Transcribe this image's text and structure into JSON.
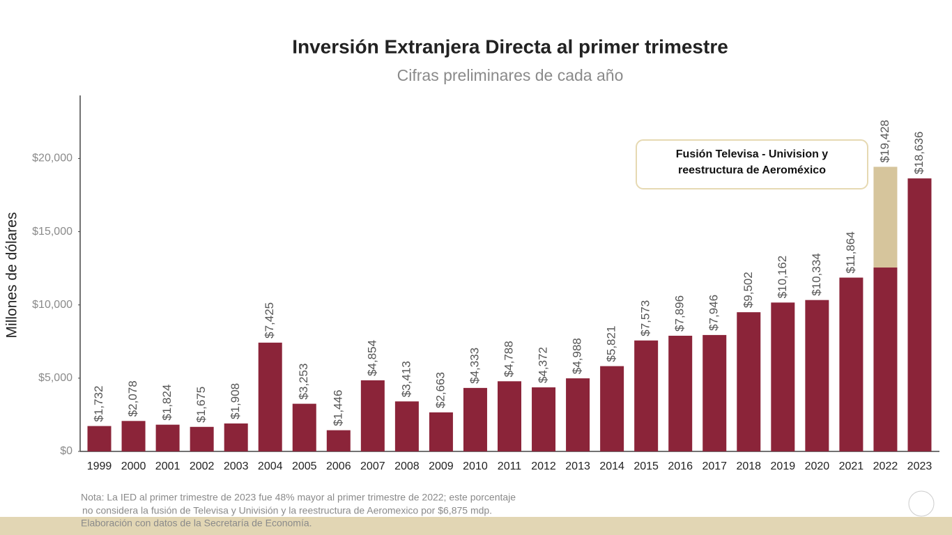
{
  "chart_data": {
    "type": "bar",
    "title": "Inversión Extranjera Directa al primer trimestre",
    "subtitle": "Cifras preliminares de cada año",
    "y_label": "Millones de dólares",
    "annotation": [
      "Fusión Televisa - Univision y",
      "reestructura de Aeroméxico"
    ],
    "notes": [
      "Nota: La IED al primer trimestre de 2023 fue 48% mayor al primer trimestre de 2022; este porcentaje",
      "no considera la fusión de Televisa y Univisión y la reestructura de Aeromexico por $6,875 mdp.",
      "Elaboración con datos de la Secretaría de Economía."
    ],
    "categories": [
      "1999",
      "2000",
      "2001",
      "2002",
      "2003",
      "2004",
      "2005",
      "2006",
      "2007",
      "2008",
      "2009",
      "2010",
      "2011",
      "2012",
      "2013",
      "2014",
      "2015",
      "2016",
      "2017",
      "2018",
      "2019",
      "2020",
      "2021",
      "2022",
      "2023"
    ],
    "series": [
      {
        "color": "#8b2439",
        "values": [
          1732,
          2078,
          1824,
          1675,
          1908,
          7425,
          3253,
          1446,
          4854,
          3413,
          2663,
          4333,
          4788,
          4372,
          4988,
          5821,
          7573,
          7896,
          7946,
          9502,
          10162,
          10334,
          11864,
          12553,
          18636
        ]
      },
      {
        "name": "Fusión Televisa - Univision y reestructura de Aeroméxico",
        "color": "#d6c59c",
        "values": [
          null,
          null,
          null,
          null,
          null,
          null,
          null,
          null,
          null,
          null,
          null,
          null,
          null,
          null,
          null,
          null,
          null,
          null,
          null,
          null,
          null,
          null,
          null,
          6875,
          null
        ]
      }
    ],
    "totals": [
      1732,
      2078,
      1824,
      1675,
      1908,
      7425,
      3253,
      1446,
      4854,
      3413,
      2663,
      4333,
      4788,
      4372,
      4988,
      5821,
      7573,
      7896,
      7946,
      9502,
      10162,
      10334,
      11864,
      19428,
      18636
    ],
    "total_labels": [
      "$1,732",
      "$2,078",
      "$1,824",
      "$1,675",
      "$1,908",
      "$7,425",
      "$3,253",
      "$1,446",
      "$4,854",
      "$3,413",
      "$2,663",
      "$4,333",
      "$4,788",
      "$4,372",
      "$4,988",
      "$5,821",
      "$7,573",
      "$7,896",
      "$7,946",
      "$9,502",
      "$10,162",
      "$10,334",
      "$11,864",
      "$19,428",
      "$18,636"
    ],
    "ylim": [
      0,
      24300
    ],
    "yticks": [
      {
        "value": 0,
        "label": "$0"
      },
      {
        "value": 5000,
        "label": "$5,000"
      },
      {
        "value": 10000,
        "label": "$10,000"
      },
      {
        "value": 15000,
        "label": "$15,000"
      },
      {
        "value": 20000,
        "label": "$20,000"
      }
    ],
    "grid": false
  }
}
